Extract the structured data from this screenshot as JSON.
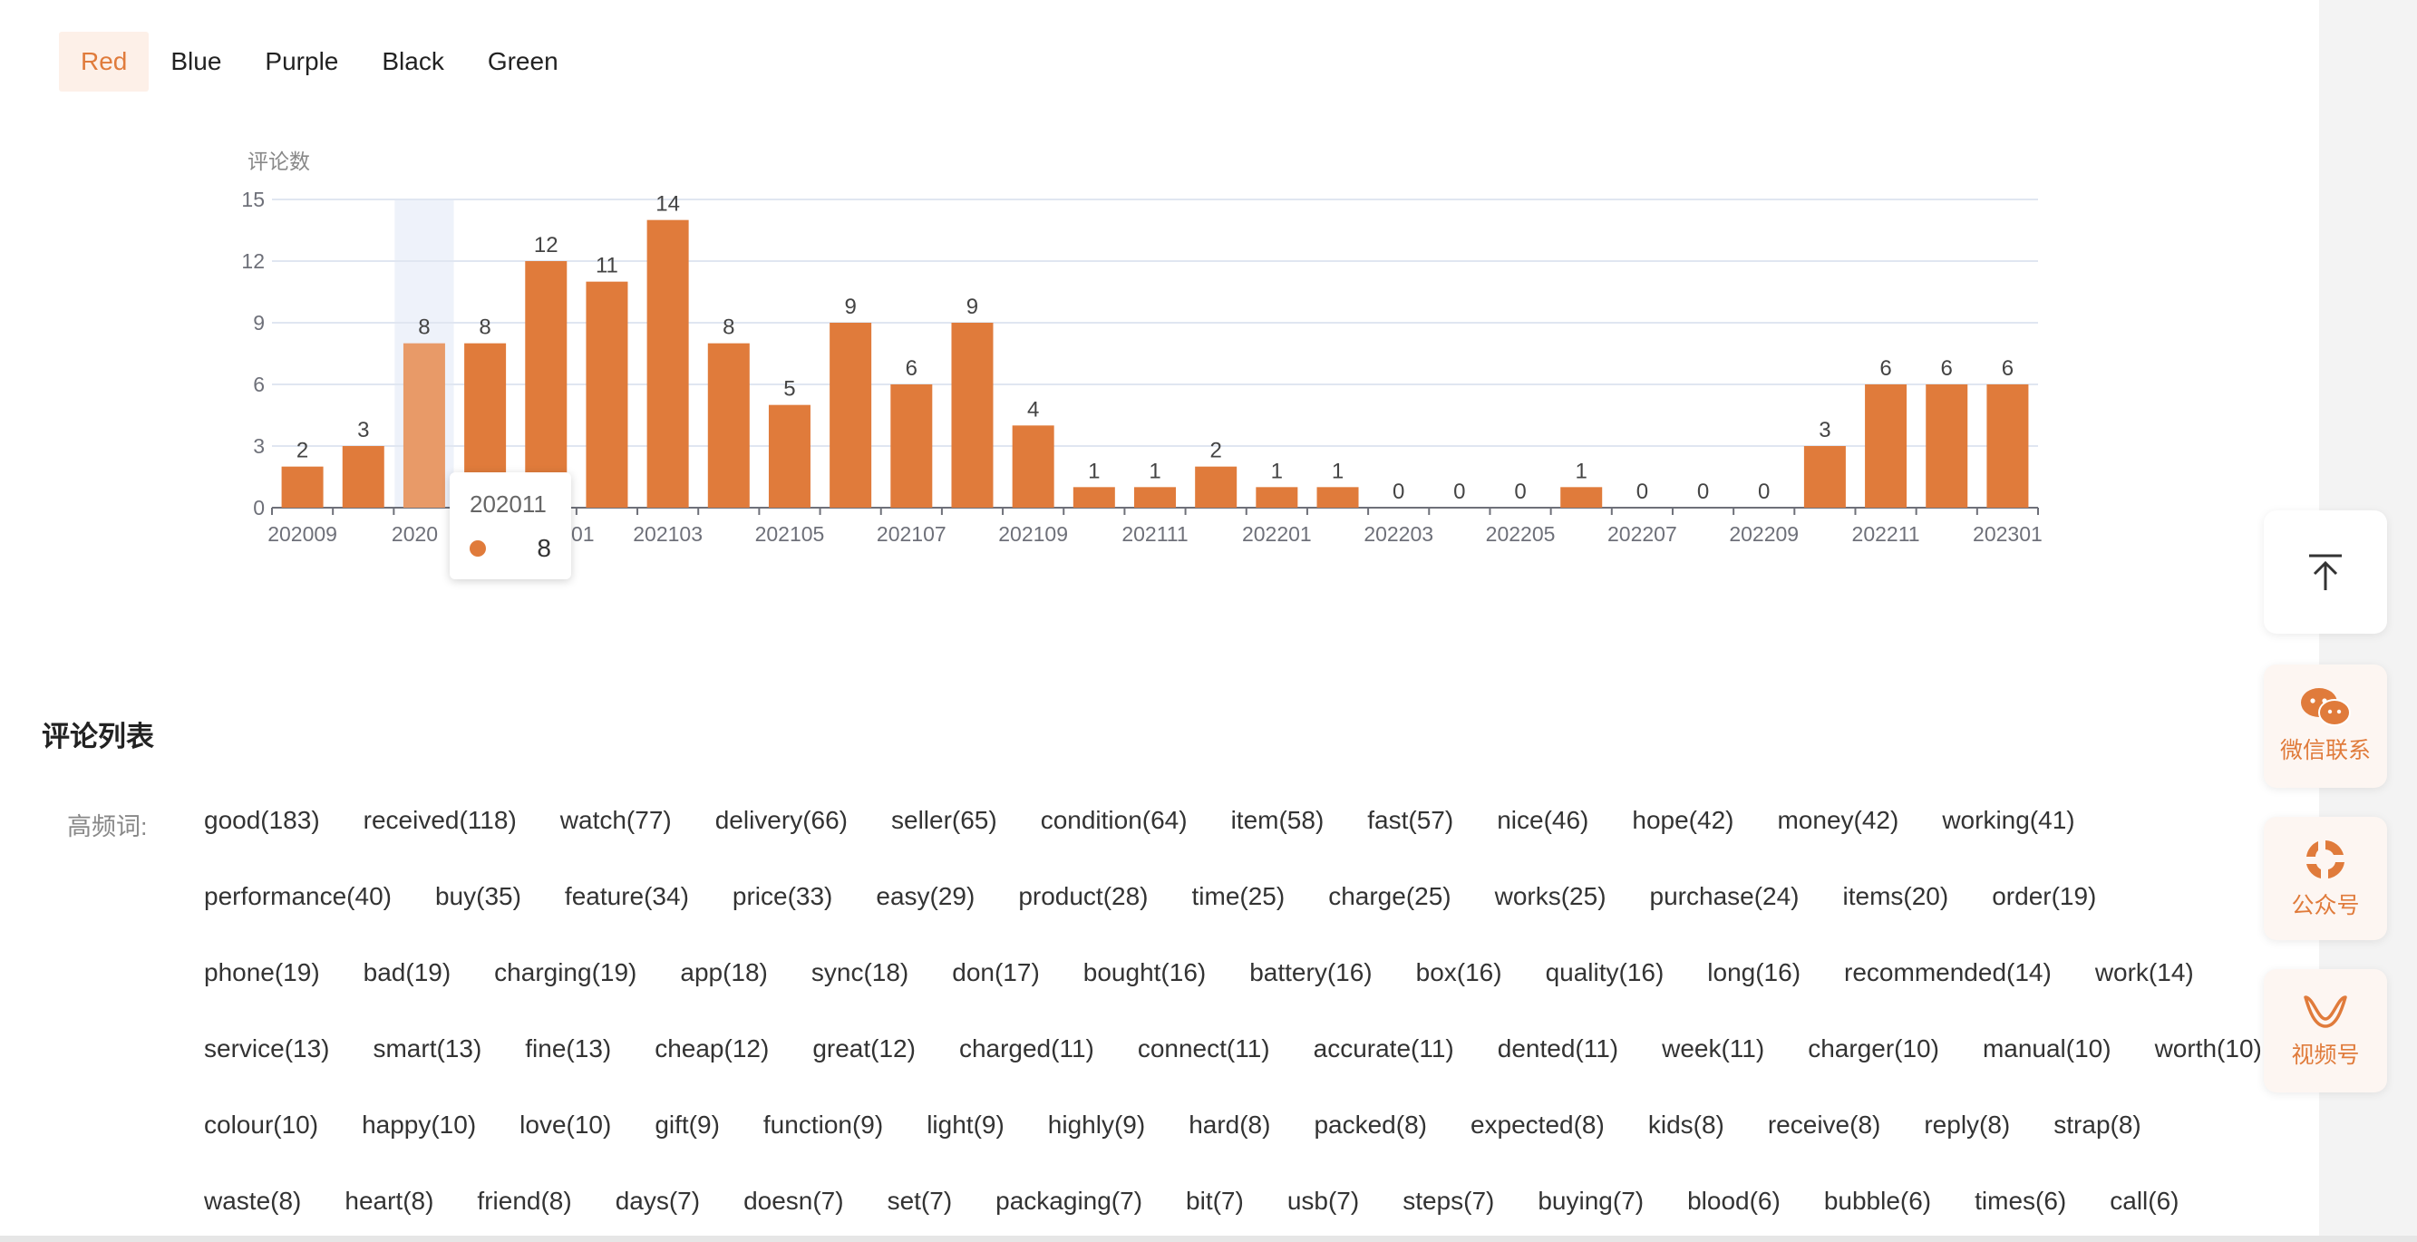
{
  "tabs": [
    {
      "label": "Red",
      "active": true
    },
    {
      "label": "Blue",
      "active": false
    },
    {
      "label": "Purple",
      "active": false
    },
    {
      "label": "Black",
      "active": false
    },
    {
      "label": "Green",
      "active": false
    }
  ],
  "colors": {
    "accent": "#e07b3b",
    "accent_highlight": "#e89a68",
    "tab_active_bg": "#fdf0e8"
  },
  "chart_data": {
    "type": "bar",
    "ylabel": "评论数",
    "ylim": [
      0,
      15
    ],
    "yticks": [
      0,
      3,
      6,
      9,
      12,
      15
    ],
    "categories": [
      "202009",
      "202010",
      "202011",
      "202012",
      "202101",
      "202102",
      "202103",
      "202104",
      "202105",
      "202106",
      "202107",
      "202108",
      "202109",
      "202110",
      "202111",
      "202112",
      "202201",
      "202202",
      "202203",
      "202204",
      "202205",
      "202206",
      "202207",
      "202208",
      "202209",
      "202210",
      "202211",
      "202212",
      "202301"
    ],
    "values": [
      2,
      3,
      8,
      8,
      12,
      11,
      14,
      8,
      5,
      9,
      6,
      9,
      4,
      1,
      1,
      2,
      1,
      1,
      0,
      0,
      0,
      1,
      0,
      0,
      0,
      3,
      6,
      6,
      6
    ],
    "shown_x_labels": [
      "202009",
      "2020",
      "01",
      "202103",
      "202105",
      "202107",
      "202109",
      "202111",
      "202201",
      "202203",
      "202205",
      "202207",
      "202209",
      "202211",
      "202301"
    ],
    "highlighted_index": 2,
    "grid": true,
    "tooltip": {
      "title": "202011",
      "value": "8"
    }
  },
  "comments": {
    "title": "评论列表",
    "keyword_label": "高频词:",
    "keyword_rows": [
      [
        "good(183)",
        "received(118)",
        "watch(77)",
        "delivery(66)",
        "seller(65)",
        "condition(64)",
        "item(58)",
        "fast(57)",
        "nice(46)",
        "hope(42)",
        "money(42)",
        "working(41)"
      ],
      [
        "performance(40)",
        "buy(35)",
        "feature(34)",
        "price(33)",
        "easy(29)",
        "product(28)",
        "time(25)",
        "charge(25)",
        "works(25)",
        "purchase(24)",
        "items(20)",
        "order(19)"
      ],
      [
        "phone(19)",
        "bad(19)",
        "charging(19)",
        "app(18)",
        "sync(18)",
        "don(17)",
        "bought(16)",
        "battery(16)",
        "box(16)",
        "quality(16)",
        "long(16)",
        "recommended(14)",
        "work(14)"
      ],
      [
        "service(13)",
        "smart(13)",
        "fine(13)",
        "cheap(12)",
        "great(12)",
        "charged(11)",
        "connect(11)",
        "accurate(11)",
        "dented(11)",
        "week(11)",
        "charger(10)",
        "manual(10)",
        "worth(10)"
      ],
      [
        "colour(10)",
        "happy(10)",
        "love(10)",
        "gift(9)",
        "function(9)",
        "light(9)",
        "highly(9)",
        "hard(8)",
        "packed(8)",
        "expected(8)",
        "kids(8)",
        "receive(8)",
        "reply(8)",
        "strap(8)"
      ],
      [
        "waste(8)",
        "heart(8)",
        "friend(8)",
        "days(7)",
        "doesn(7)",
        "set(7)",
        "packaging(7)",
        "bit(7)",
        "usb(7)",
        "steps(7)",
        "buying(7)",
        "blood(6)",
        "bubble(6)",
        "times(6)",
        "call(6)"
      ]
    ]
  },
  "float": {
    "top_icon": "back-to-top-icon",
    "wechat_label": "微信联系",
    "gzh_label": "公众号",
    "video_label": "视频号"
  }
}
